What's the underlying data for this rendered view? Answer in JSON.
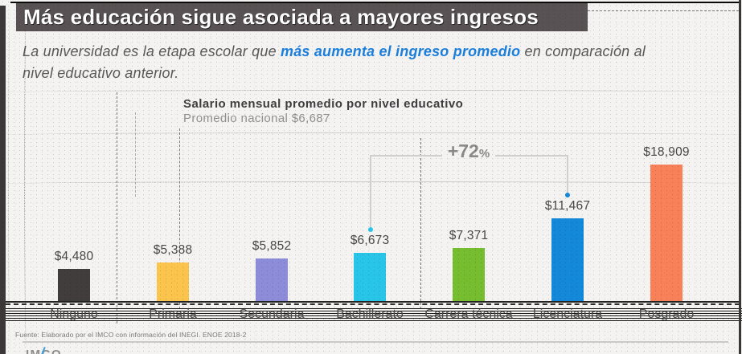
{
  "slide": {
    "title": "Más educación sigue asociada a mayores ingresos",
    "title_bar_color": "#595254",
    "subtitle_pre": "La universidad es la etapa escolar que ",
    "subtitle_highlight": "más aumenta el ingreso promedio",
    "subtitle_post": " en comparación al",
    "subtitle_line2": "nivel educativo anterior.",
    "highlight_color": "#1b7fdb"
  },
  "chart_data": {
    "type": "bar",
    "title": "Salario mensual promedio por nivel educativo",
    "subtitle": "Promedio nacional $6,687",
    "national_average": 6687,
    "categories": [
      "Ninguno",
      "Primaria",
      "Secundaria",
      "Bachillerato",
      "Carrera técnica",
      "Licenciatura",
      "Posgrado"
    ],
    "values": [
      4480,
      5388,
      5852,
      6673,
      7371,
      11467,
      18909
    ],
    "value_labels": [
      "$4,480",
      "$5,388",
      "$5,852",
      "$6,673",
      "$7,371",
      "$11,467",
      "$18,909"
    ],
    "bar_colors": [
      "#413d3d",
      "#fbc44d",
      "#8c8cd9",
      "#29c5e9",
      "#77bd30",
      "#1488d9",
      "#f8815a"
    ],
    "ylim": [
      0,
      18909
    ],
    "grid": false,
    "legend": false,
    "annotation": {
      "label": "+72",
      "suffix": "%",
      "from": "Bachillerato",
      "to": "Licenciatura",
      "line_color": "#cfcfcf",
      "text_color": "#8a8a8a"
    }
  },
  "source": {
    "text": "Fuente: Elaborado por el IMCO con información del INEGI. ENOE 2018-2"
  },
  "footer": {
    "logo_text": "IMCO"
  }
}
